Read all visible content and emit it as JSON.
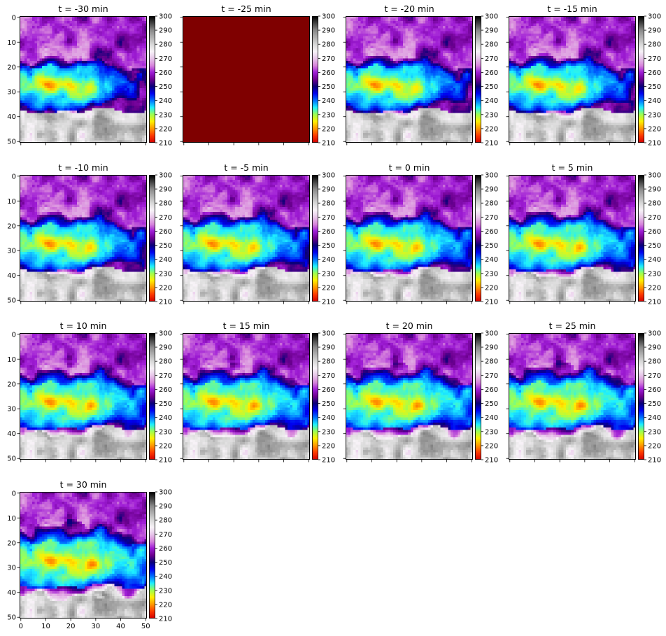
{
  "figure": {
    "colormap": "custom brightness-temperature palette",
    "colormap_stops": [
      {
        "v": 210,
        "c": "#d40000"
      },
      {
        "v": 215,
        "c": "#ff3a00"
      },
      {
        "v": 220,
        "c": "#ff9a00"
      },
      {
        "v": 225,
        "c": "#fff000"
      },
      {
        "v": 230,
        "c": "#9dff52"
      },
      {
        "v": 235,
        "c": "#1ef0ff"
      },
      {
        "v": 240,
        "c": "#0070ff"
      },
      {
        "v": 245,
        "c": "#0000f0"
      },
      {
        "v": 250,
        "c": "#0a0078"
      },
      {
        "v": 255,
        "c": "#6d0090"
      },
      {
        "v": 260,
        "c": "#9f1cd6"
      },
      {
        "v": 265,
        "c": "#d887dc"
      },
      {
        "v": 270,
        "c": "#e8c8ea"
      },
      {
        "v": 275,
        "c": "#f8f4f8"
      },
      {
        "v": 280,
        "c": "#d8d8d8"
      },
      {
        "v": 290,
        "c": "#8a8a8a"
      },
      {
        "v": 300,
        "c": "#000000"
      }
    ],
    "missing_panel_color": "#7f0000"
  },
  "chart_data": {
    "type": "heatmap",
    "grid_size": 51,
    "x_ticks": [
      0,
      10,
      20,
      30,
      40,
      50
    ],
    "y_ticks": [
      0,
      10,
      20,
      30,
      40,
      50
    ],
    "xlim": [
      -0.5,
      50.5
    ],
    "ylim": [
      50.5,
      -0.5
    ],
    "colorbar": {
      "min": 210,
      "max": 300,
      "ticks": [
        210,
        220,
        230,
        240,
        250,
        260,
        270,
        280,
        290,
        300
      ]
    },
    "panels": [
      {
        "title": "t = -30 min",
        "minutes": -30,
        "uniform": false
      },
      {
        "title": "t = -25 min",
        "minutes": -25,
        "uniform": true
      },
      {
        "title": "t = -20 min",
        "minutes": -20,
        "uniform": false
      },
      {
        "title": "t = -15 min",
        "minutes": -15,
        "uniform": false
      },
      {
        "title": "t = -10 min",
        "minutes": -10,
        "uniform": false
      },
      {
        "title": "t = -5 min",
        "minutes": -5,
        "uniform": false
      },
      {
        "title": "t = 0 min",
        "minutes": 0,
        "uniform": false
      },
      {
        "title": "t = 5 min",
        "minutes": 5,
        "uniform": false
      },
      {
        "title": "t = 10 min",
        "minutes": 10,
        "uniform": false
      },
      {
        "title": "t = 15 min",
        "minutes": 15,
        "uniform": false
      },
      {
        "title": "t = 20 min",
        "minutes": 20,
        "uniform": false
      },
      {
        "title": "t = 25 min",
        "minutes": 25,
        "uniform": false
      },
      {
        "title": "t = 30 min",
        "minutes": 30,
        "uniform": false
      }
    ]
  }
}
